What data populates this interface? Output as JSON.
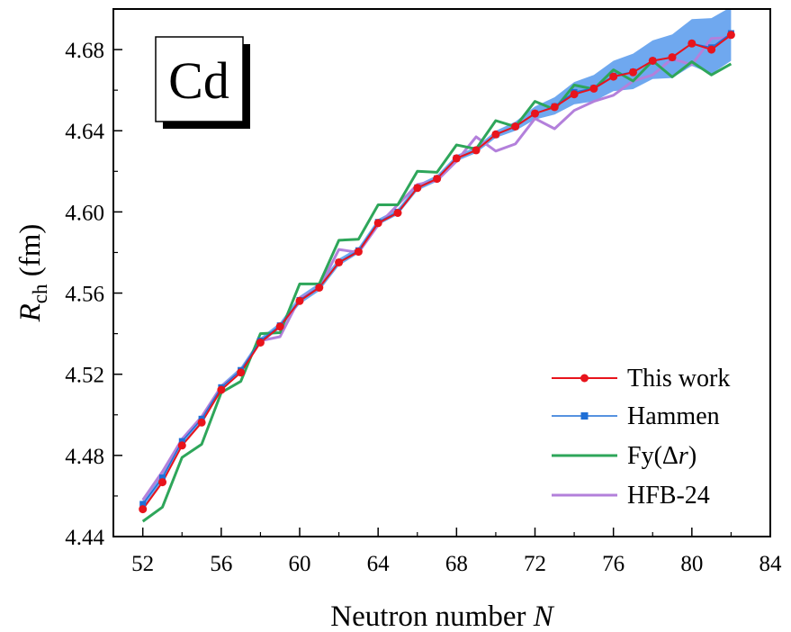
{
  "chart_data": {
    "type": "line",
    "element_label": "Cd",
    "xlabel": "Neutron number ",
    "xlabel_italic": "N",
    "ylabel_main": "R",
    "ylabel_sub": "ch",
    "ylabel_unit": " (fm)",
    "xlim": [
      50.5,
      84
    ],
    "ylim": [
      4.44,
      4.7
    ],
    "x_ticks": [
      52,
      56,
      60,
      64,
      68,
      72,
      76,
      80,
      84
    ],
    "x_tick_labels": [
      "52",
      "56",
      "60",
      "64",
      "68",
      "72",
      "76",
      "80",
      "84"
    ],
    "y_ticks": [
      4.44,
      4.48,
      4.52,
      4.56,
      4.6,
      4.64,
      4.68
    ],
    "y_tick_labels": [
      "4.44",
      "4.48",
      "4.52",
      "4.56",
      "4.60",
      "4.64",
      "4.68"
    ],
    "legend_position": "bottom-right",
    "x": [
      52,
      53,
      54,
      55,
      56,
      57,
      58,
      59,
      60,
      61,
      62,
      63,
      64,
      65,
      66,
      67,
      68,
      69,
      70,
      71,
      72,
      73,
      74,
      75,
      76,
      77,
      78,
      79,
      80,
      81,
      82
    ],
    "series": [
      {
        "name": "This work",
        "color": "#e8141c",
        "marker": "circle",
        "values": [
          4.4535,
          4.4668,
          4.4849,
          4.4962,
          4.5123,
          4.5209,
          4.5356,
          4.5435,
          4.5561,
          4.5627,
          4.5751,
          4.5804,
          4.5945,
          4.5995,
          4.6118,
          4.6163,
          4.6264,
          4.6304,
          4.6382,
          4.6421,
          4.6485,
          4.6517,
          4.658,
          4.6608,
          4.6667,
          4.6688,
          4.6745,
          4.6762,
          4.683,
          4.68,
          4.6872
        ]
      },
      {
        "name": "Hammen",
        "color": "#1f6fd6",
        "marker": "square",
        "values": [
          4.456,
          4.469,
          4.487,
          4.498,
          4.5135,
          4.522,
          4.5365,
          4.544,
          4.5565,
          4.563,
          4.5752,
          4.581,
          4.595,
          4.6,
          4.612,
          4.6165,
          4.6265,
          4.6305,
          4.638,
          4.642,
          4.6485,
          4.652,
          4.659,
          4.661,
          4.667,
          4.669,
          4.6745,
          4.676,
          4.683,
          4.681,
          4.688
        ]
      },
      {
        "name": "Fy(Δr)",
        "name_plain": "Fy(Δ",
        "name_italic": "r",
        "name_close": ")",
        "color": "#2ea65a",
        "marker": "none",
        "values": [
          4.4475,
          4.4545,
          4.479,
          4.4855,
          4.511,
          4.5165,
          4.54,
          4.5405,
          4.5645,
          4.5645,
          4.586,
          4.5865,
          4.6035,
          4.6035,
          4.62,
          4.6195,
          4.633,
          4.631,
          4.645,
          4.642,
          4.6545,
          4.6505,
          4.6625,
          4.6605,
          4.67,
          4.6645,
          4.6745,
          4.6665,
          4.674,
          4.6675,
          4.673
        ]
      },
      {
        "name": "HFB-24",
        "color": "#b380db",
        "marker": "none",
        "values": [
          4.458,
          4.472,
          4.488,
          4.499,
          4.514,
          4.5215,
          4.5365,
          4.5385,
          4.5575,
          4.5625,
          4.5815,
          4.58,
          4.5935,
          4.6035,
          4.6135,
          4.6155,
          4.625,
          4.637,
          4.63,
          4.6335,
          4.646,
          4.641,
          4.65,
          4.6545,
          4.6575,
          4.6645,
          4.6675,
          4.6755,
          4.6725,
          4.6855,
          4.686
        ]
      }
    ],
    "band": {
      "color": "#6fa8ef",
      "upper": [
        4.458,
        4.471,
        4.489,
        4.5,
        4.515,
        4.5235,
        4.538,
        4.5455,
        4.5585,
        4.565,
        4.577,
        4.5825,
        4.5965,
        4.6015,
        4.6135,
        4.618,
        4.628,
        4.632,
        4.64,
        4.6445,
        4.652,
        4.6565,
        4.664,
        4.6675,
        4.6745,
        4.678,
        4.6845,
        4.6875,
        4.695,
        4.6955,
        4.701
      ],
      "lower": [
        4.454,
        4.467,
        4.485,
        4.496,
        4.512,
        4.5205,
        4.535,
        4.5425,
        4.5545,
        4.561,
        4.5735,
        4.5795,
        4.5935,
        4.5985,
        4.6105,
        4.615,
        4.625,
        4.629,
        4.6365,
        4.64,
        4.6455,
        4.648,
        4.653,
        4.6545,
        4.6595,
        4.6605,
        4.6655,
        4.666,
        4.672,
        4.668,
        4.6745
      ]
    }
  }
}
